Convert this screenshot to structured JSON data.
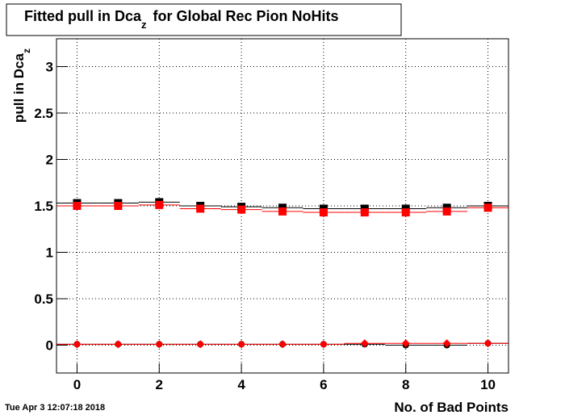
{
  "chart_data": {
    "type": "hist-points",
    "title": {
      "text": "Fitted pull in Dca",
      "subscript": "z",
      "suffix": "for Global Rec Pion NoHits"
    },
    "ylabel": {
      "text": "pull in Dca",
      "subscript": "z"
    },
    "xlabel": "No. of Bad Points",
    "timestamp": "Tue Apr  3 12:07:18 2018",
    "x": [
      0,
      1,
      2,
      3,
      4,
      5,
      6,
      7,
      8,
      9,
      10
    ],
    "series": [
      {
        "color": "#000000",
        "marker": "square",
        "values": [
          1.53,
          1.53,
          1.54,
          1.5,
          1.49,
          1.48,
          1.47,
          1.47,
          1.47,
          1.48,
          1.5
        ]
      },
      {
        "color": "#ff0000",
        "marker": "square",
        "values": [
          1.5,
          1.5,
          1.51,
          1.47,
          1.46,
          1.44,
          1.43,
          1.43,
          1.43,
          1.44,
          1.48
        ]
      },
      {
        "color": "#000000",
        "marker": "circle",
        "values": [
          0.01,
          0.01,
          0.01,
          0.01,
          0.01,
          0.01,
          0.01,
          0.01,
          0.0,
          0.0,
          0.02
        ]
      },
      {
        "color": "#ff0000",
        "marker": "diamond",
        "values": [
          0.01,
          0.01,
          0.01,
          0.01,
          0.01,
          0.01,
          0.01,
          0.02,
          0.02,
          0.02,
          0.02
        ]
      }
    ],
    "xlim": [
      -0.5,
      10.5
    ],
    "xticks": [
      0,
      2,
      4,
      6,
      8,
      10
    ],
    "ylim": [
      -0.3,
      3.3
    ],
    "yticks": [
      0,
      0.5,
      1,
      1.5,
      2,
      2.5,
      3
    ],
    "grid": true
  }
}
